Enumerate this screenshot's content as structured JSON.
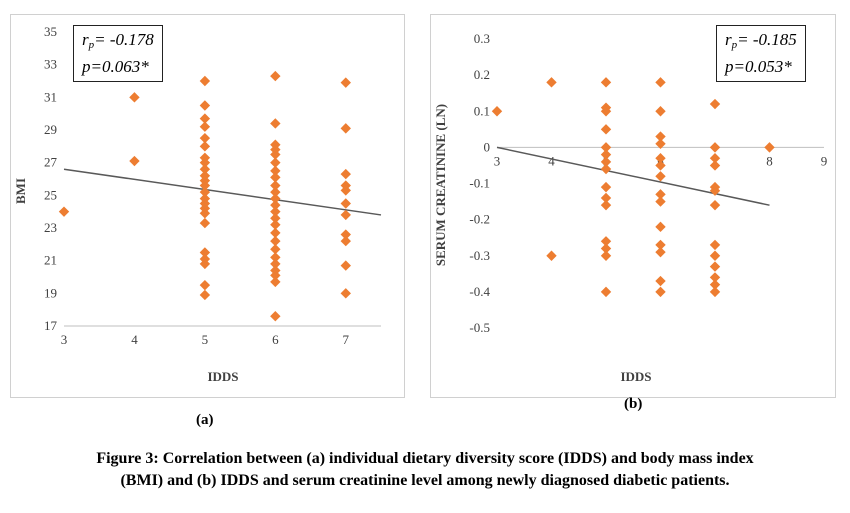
{
  "panel_a_label": "(a)",
  "panel_b_label": "(b)",
  "caption_line1": "Figure 3: Correlation between (a) individual dietary diversity score (IDDS) and body mass index",
  "caption_line2": "(BMI) and (b) IDDS and serum creatinine level among newly diagnosed diabetic patients.",
  "colors": {
    "marker": "#ED7D31",
    "trend": "#595959",
    "axis": "#bfbfbf",
    "text": "#404040"
  },
  "chart_data": [
    {
      "type": "scatter",
      "xlabel": "IDDS",
      "ylabel": "BMI",
      "xlim": [
        3,
        7.5
      ],
      "ylim": [
        17,
        35
      ],
      "xticks": [
        "3",
        "4",
        "5",
        "6",
        "7"
      ],
      "yticks": [
        "17",
        "19",
        "21",
        "23",
        "25",
        "27",
        "29",
        "31",
        "33",
        "35"
      ],
      "stats": {
        "r_symbol": "r",
        "r_sub": "p",
        "r_value": "= -0.178",
        "p_text": "p=0.063*"
      },
      "trendline": {
        "x": [
          3,
          7.5
        ],
        "y": [
          26.6,
          23.8
        ]
      },
      "points": [
        [
          3,
          24.0
        ],
        [
          4,
          31.0
        ],
        [
          4,
          27.1
        ],
        [
          5,
          32.0
        ],
        [
          5,
          30.5
        ],
        [
          5,
          29.7
        ],
        [
          5,
          29.2
        ],
        [
          5,
          28.5
        ],
        [
          5,
          28.0
        ],
        [
          5,
          27.3
        ],
        [
          5,
          27.0
        ],
        [
          5,
          26.6
        ],
        [
          5,
          26.2
        ],
        [
          5,
          25.9
        ],
        [
          5,
          25.6
        ],
        [
          5,
          25.2
        ],
        [
          5,
          24.8
        ],
        [
          5,
          24.5
        ],
        [
          5,
          24.2
        ],
        [
          5,
          23.9
        ],
        [
          5,
          23.3
        ],
        [
          5,
          21.5
        ],
        [
          5,
          21.1
        ],
        [
          5,
          20.8
        ],
        [
          5,
          19.5
        ],
        [
          5,
          18.9
        ],
        [
          6,
          32.3
        ],
        [
          6,
          29.4
        ],
        [
          6,
          28.1
        ],
        [
          6,
          27.8
        ],
        [
          6,
          27.5
        ],
        [
          6,
          27.0
        ],
        [
          6,
          26.5
        ],
        [
          6,
          26.1
        ],
        [
          6,
          25.6
        ],
        [
          6,
          25.2
        ],
        [
          6,
          24.8
        ],
        [
          6,
          24.4
        ],
        [
          6,
          24.0
        ],
        [
          6,
          23.6
        ],
        [
          6,
          23.2
        ],
        [
          6,
          22.7
        ],
        [
          6,
          22.2
        ],
        [
          6,
          21.7
        ],
        [
          6,
          21.2
        ],
        [
          6,
          20.8
        ],
        [
          6,
          20.4
        ],
        [
          6,
          20.1
        ],
        [
          6,
          19.7
        ],
        [
          6,
          17.6
        ],
        [
          7,
          31.9
        ],
        [
          7,
          29.1
        ],
        [
          7,
          26.3
        ],
        [
          7,
          25.6
        ],
        [
          7,
          25.3
        ],
        [
          7,
          24.5
        ],
        [
          7,
          23.8
        ],
        [
          7,
          22.6
        ],
        [
          7,
          22.2
        ],
        [
          7,
          20.7
        ],
        [
          7,
          19.0
        ]
      ]
    },
    {
      "type": "scatter",
      "xlabel": "IDDS",
      "ylabel": "SERUM CREATININE (LN)",
      "xlim": [
        3,
        9
      ],
      "ylim": [
        -0.5,
        0.3
      ],
      "xticks": [
        "3",
        "4",
        "5",
        "6",
        "7",
        "8",
        "9"
      ],
      "yticks": [
        "-0.5",
        "-0.4",
        "-0.3",
        "-0.2",
        "-0.1",
        "0",
        "0.1",
        "0.2",
        "0.3"
      ],
      "stats": {
        "r_symbol": "r",
        "r_sub": "p",
        "r_value": "= -0.185",
        "p_text": "p=0.053*"
      },
      "trendline": {
        "x": [
          3,
          8
        ],
        "y": [
          0.0,
          -0.16
        ]
      },
      "points": [
        [
          3,
          0.1
        ],
        [
          4,
          0.18
        ],
        [
          4,
          -0.3
        ],
        [
          5,
          0.18
        ],
        [
          5,
          0.11
        ],
        [
          5,
          0.1
        ],
        [
          5,
          0.05
        ],
        [
          5,
          0.0
        ],
        [
          5,
          -0.02
        ],
        [
          5,
          -0.04
        ],
        [
          5,
          -0.06
        ],
        [
          5,
          -0.11
        ],
        [
          5,
          -0.14
        ],
        [
          5,
          -0.16
        ],
        [
          5,
          -0.26
        ],
        [
          5,
          -0.28
        ],
        [
          5,
          -0.3
        ],
        [
          5,
          -0.4
        ],
        [
          6,
          0.18
        ],
        [
          6,
          0.1
        ],
        [
          6,
          0.03
        ],
        [
          6,
          0.01
        ],
        [
          6,
          -0.03
        ],
        [
          6,
          -0.05
        ],
        [
          6,
          -0.08
        ],
        [
          6,
          -0.13
        ],
        [
          6,
          -0.15
        ],
        [
          6,
          -0.22
        ],
        [
          6,
          -0.27
        ],
        [
          6,
          -0.29
        ],
        [
          6,
          -0.37
        ],
        [
          6,
          -0.4
        ],
        [
          7,
          0.12
        ],
        [
          7,
          0.0
        ],
        [
          7,
          -0.03
        ],
        [
          7,
          -0.05
        ],
        [
          7,
          -0.11
        ],
        [
          7,
          -0.12
        ],
        [
          7,
          -0.16
        ],
        [
          7,
          -0.27
        ],
        [
          7,
          -0.3
        ],
        [
          7,
          -0.33
        ],
        [
          7,
          -0.36
        ],
        [
          7,
          -0.38
        ],
        [
          7,
          -0.4
        ],
        [
          8,
          0.0
        ]
      ]
    }
  ]
}
